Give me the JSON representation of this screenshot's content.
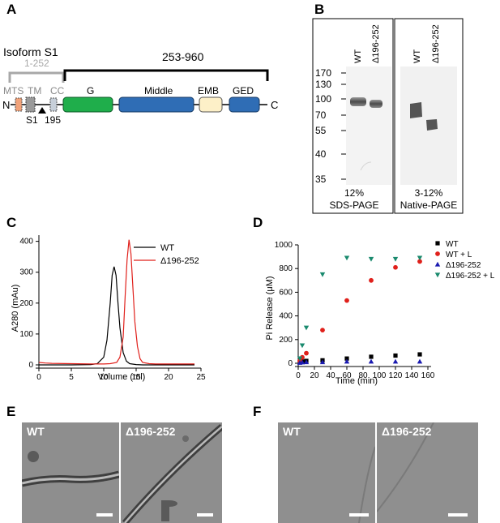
{
  "panels": {
    "a": "A",
    "b": "B",
    "c": "C",
    "d": "D",
    "e": "E",
    "f": "F"
  },
  "panel_a": {
    "isoform": "Isoform S1",
    "region1": "1-252",
    "region2": "253-960",
    "n_term": "N",
    "c_term": "C",
    "mts": "MTS",
    "tm": "TM",
    "cc": "CC",
    "s1": "S1",
    "site": "195",
    "domains": [
      "G",
      "Middle",
      "EMB",
      "GED"
    ],
    "colors": {
      "mts": "#f2a37a",
      "tm": "#9a9a9a",
      "cc": "#c7cfd9",
      "g": "#1fae4b",
      "middle": "#2f6db5",
      "emb": "#fdf0c8",
      "ged": "#2f6db5",
      "bracket_gray": "#a8a8a8"
    }
  },
  "panel_b": {
    "lanes_sds": [
      "WT",
      "Δ196-252"
    ],
    "lanes_native": [
      "WT",
      "Δ196-252"
    ],
    "markers": [
      "170",
      "130",
      "100",
      "70",
      "55",
      "40",
      "35"
    ],
    "gel1_pct": "12%",
    "gel1_type": "SDS-PAGE",
    "gel2_pct": "3-12%",
    "gel2_type": "Native-PAGE"
  },
  "panel_e": {
    "left": "WT",
    "right": "Δ196-252"
  },
  "panel_f": {
    "left": "WT",
    "right": "Δ196-252"
  },
  "chart_data": [
    {
      "type": "line",
      "panel": "C",
      "xlabel": "Volume (ml)",
      "ylabel": "A280 (mAu)",
      "xlim": [
        0,
        25
      ],
      "ylim": [
        0,
        420
      ],
      "xticks": [
        "0",
        "5",
        "10",
        "15",
        "20",
        "25"
      ],
      "yticks": [
        "0",
        "100",
        "200",
        "300",
        "400"
      ],
      "legend_position": "top-right",
      "series": [
        {
          "name": "WT",
          "color": "#000000",
          "x": [
            0,
            2,
            5,
            8,
            9,
            10,
            10.5,
            11,
            11.3,
            11.6,
            11.9,
            12.2,
            12.5,
            13,
            13.5,
            14,
            15,
            16,
            18,
            20,
            24
          ],
          "y": [
            0,
            0,
            0,
            1,
            4,
            25,
            80,
            200,
            290,
            318,
            290,
            200,
            120,
            40,
            12,
            4,
            1,
            0,
            0,
            0,
            0
          ]
        },
        {
          "name": "Δ196-252",
          "color": "#e0201b",
          "x": [
            0,
            1,
            2,
            5,
            8,
            10,
            11,
            12,
            12.5,
            13,
            13.3,
            13.6,
            13.9,
            14.2,
            14.5,
            14.8,
            15.2,
            15.6,
            16,
            17,
            18,
            20,
            24
          ],
          "y": [
            8,
            6,
            5,
            4,
            3,
            3,
            4,
            8,
            25,
            90,
            220,
            340,
            405,
            360,
            250,
            140,
            60,
            20,
            8,
            4,
            3,
            3,
            3
          ]
        }
      ]
    },
    {
      "type": "scatter",
      "panel": "D",
      "xlabel": "Time (min)",
      "ylabel": "Pi Release (μM)",
      "xlim": [
        0,
        160
      ],
      "ylim": [
        0,
        1000
      ],
      "xticks": [
        "0",
        "20",
        "40",
        "60",
        "80",
        "100",
        "120",
        "140",
        "160"
      ],
      "yticks": [
        "0",
        "200",
        "400",
        "600",
        "800",
        "1000"
      ],
      "legend_position": "top-right",
      "series": [
        {
          "name": "WT",
          "color": "#000000",
          "marker": "square",
          "x": [
            2,
            5,
            10,
            30,
            60,
            90,
            120,
            150
          ],
          "y": [
            10,
            15,
            20,
            25,
            40,
            55,
            65,
            75
          ]
        },
        {
          "name": "WT + L",
          "color": "#e0201b",
          "marker": "circle",
          "x": [
            2,
            5,
            10,
            30,
            60,
            90,
            120,
            150
          ],
          "y": [
            20,
            50,
            85,
            280,
            530,
            700,
            810,
            860
          ]
        },
        {
          "name": "Δ196-252",
          "color": "#1a1ab0",
          "marker": "triangle-up",
          "x": [
            2,
            5,
            10,
            30,
            60,
            90,
            120,
            150
          ],
          "y": [
            5,
            8,
            10,
            10,
            15,
            15,
            15,
            15
          ]
        },
        {
          "name": "Δ196-252 + L",
          "color": "#1a8a6e",
          "marker": "triangle-down",
          "x": [
            2,
            5,
            10,
            30,
            60,
            90,
            120,
            150
          ],
          "y": [
            40,
            150,
            300,
            750,
            890,
            880,
            880,
            890
          ]
        }
      ]
    }
  ]
}
